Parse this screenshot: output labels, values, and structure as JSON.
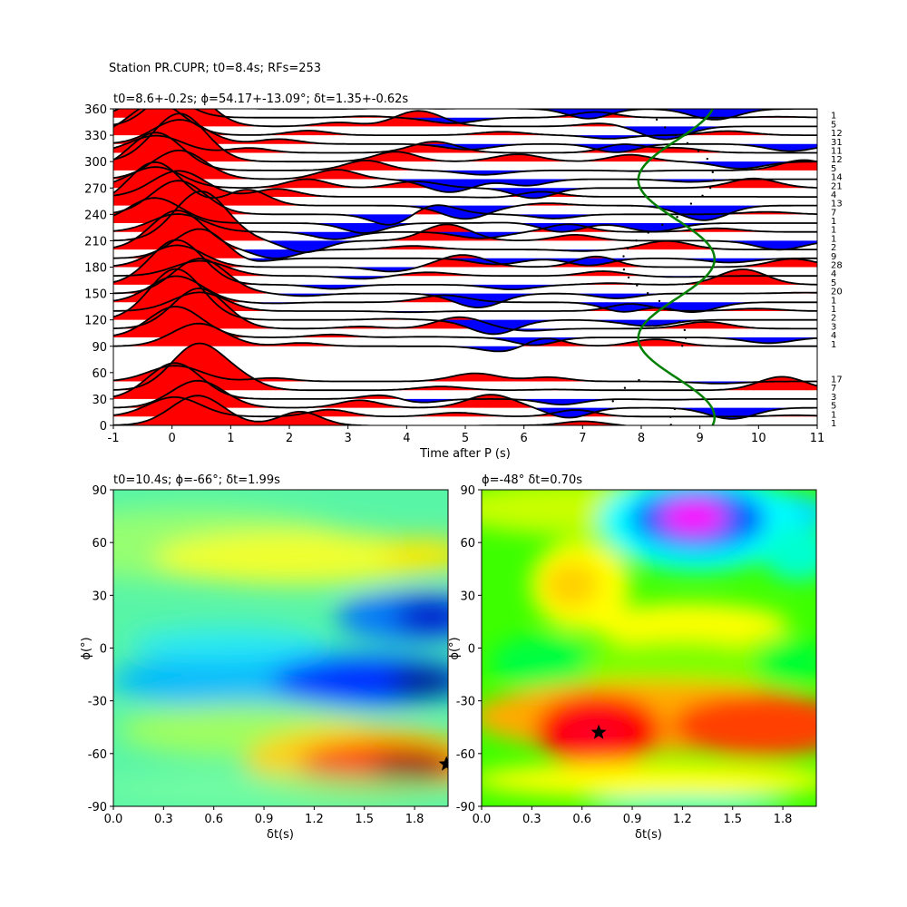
{
  "figure": {
    "suptitle": "Station PR.CUPR; t0=8.4s; RFs=253"
  },
  "chart_data": [
    {
      "type": "line",
      "panel": "receiver-function-traces",
      "title": "t0=8.6+-0.2s; ϕ=54.17+-13.09°; δt=1.35+-0.62s",
      "xlabel": "Time after P (s)",
      "ylabel": "",
      "xlim": [
        -1,
        11
      ],
      "ylim": [
        0,
        360
      ],
      "xticks": [
        -1,
        0,
        1,
        2,
        3,
        4,
        5,
        6,
        7,
        8,
        9,
        10,
        11
      ],
      "yticks": [
        0,
        30,
        60,
        90,
        120,
        150,
        180,
        210,
        240,
        270,
        300,
        330,
        360
      ],
      "fill_colors": {
        "positive": "#ff0000",
        "negative": "#0000ff"
      },
      "curve_color": "#008000",
      "backazimuth_bins": [
        0,
        10,
        20,
        30,
        40,
        50,
        90,
        100,
        110,
        120,
        130,
        140,
        150,
        160,
        170,
        180,
        190,
        200,
        210,
        220,
        230,
        240,
        250,
        260,
        270,
        280,
        290,
        300,
        310,
        320,
        330,
        340,
        350,
        360
      ],
      "counts": [
        "1",
        "1",
        "5",
        "3",
        "7",
        "17",
        "1",
        "4",
        "3",
        "2",
        "1",
        "1",
        "20",
        "5",
        "4",
        "28",
        "9",
        "2",
        "1",
        "1",
        "1",
        "7",
        "13",
        "4",
        "21",
        "14",
        "5",
        "12",
        "11",
        "31",
        "12",
        "5",
        "1"
      ],
      "green_curve": {
        "t_mean": 8.6,
        "amplitude": 0.65,
        "phase_deg": 54.17
      }
    },
    {
      "type": "heatmap",
      "panel": "energy-map-1",
      "title": "t0=10.4s; ϕ=-66°; δt=1.99s",
      "xlabel": "δt(s)",
      "ylabel": "ϕ(°)",
      "xlim": [
        0,
        2.0
      ],
      "ylim": [
        -90,
        90
      ],
      "xticks": [
        "0.0",
        "0.3",
        "0.6",
        "0.9",
        "1.2",
        "1.5",
        "1.8"
      ],
      "yticks": [
        -90,
        -60,
        -30,
        0,
        30,
        60,
        90
      ],
      "colormap": "jet",
      "best_fit": {
        "dt": 1.99,
        "phi": -66
      }
    },
    {
      "type": "heatmap",
      "panel": "energy-map-2",
      "title": "ϕ=-48° δt=0.70s",
      "xlabel": "δt(s)",
      "ylabel": "ϕ(°)",
      "xlim": [
        0,
        2.0
      ],
      "ylim": [
        -90,
        90
      ],
      "xticks": [
        "0.0",
        "0.3",
        "0.6",
        "0.9",
        "1.2",
        "1.5",
        "1.8"
      ],
      "yticks": [
        -90,
        -60,
        -30,
        0,
        30,
        60,
        90
      ],
      "colormap": "hsv",
      "best_fit": {
        "dt": 0.7,
        "phi": -48
      }
    }
  ]
}
